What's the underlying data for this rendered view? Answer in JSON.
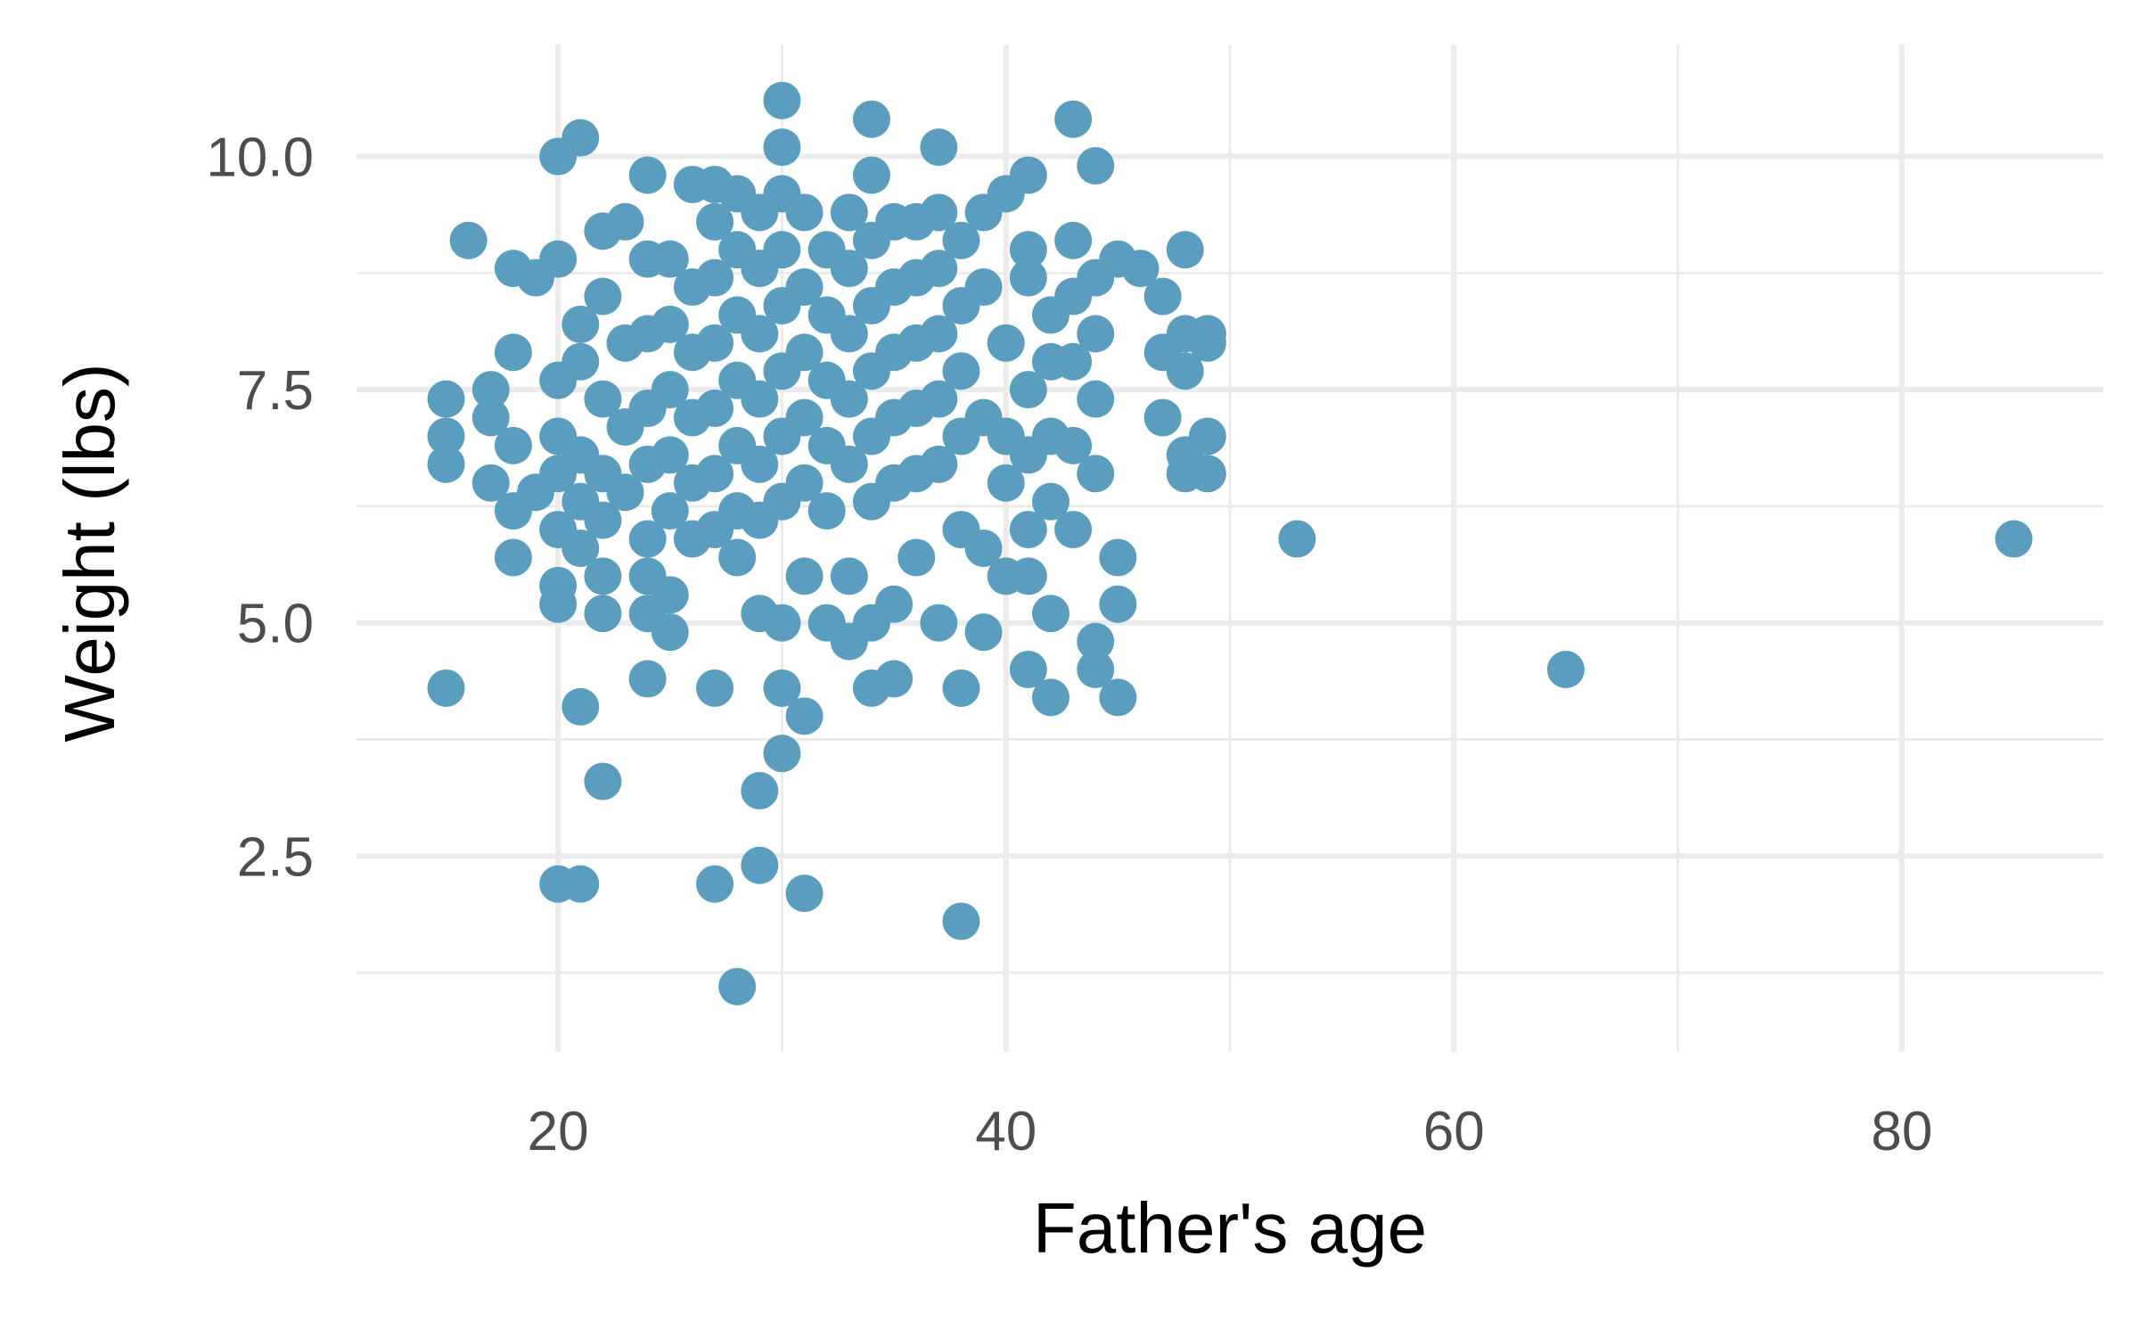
{
  "chart_data": {
    "type": "scatter",
    "xlabel": "Father's age",
    "ylabel": "Weight (lbs)",
    "xlim": [
      11,
      89
    ],
    "ylim": [
      0.4,
      11.2
    ],
    "x_ticks": [
      20,
      40,
      60,
      80
    ],
    "x_tick_labels": [
      "20",
      "40",
      "60",
      "80"
    ],
    "x_minor_ticks": [
      30,
      50,
      70
    ],
    "y_ticks": [
      2.5,
      5.0,
      7.5,
      10.0
    ],
    "y_tick_labels": [
      "2.5",
      "5.0",
      "7.5",
      "10.0"
    ],
    "y_minor_ticks": [
      1.25,
      3.75,
      6.25,
      8.75
    ],
    "grid": true,
    "legend": "none",
    "point_color": "#5a9dbf",
    "series": [
      {
        "x": [
          15,
          15,
          15,
          15,
          16,
          17,
          17,
          17,
          18,
          18,
          18,
          18,
          18,
          19,
          19,
          20,
          20,
          20,
          20,
          20,
          20,
          20,
          20,
          20,
          21,
          21,
          21,
          21,
          21,
          21,
          21,
          21,
          22,
          22,
          22,
          22,
          22,
          22,
          22,
          22,
          23,
          23,
          23,
          23,
          24,
          24,
          24,
          24,
          24,
          24,
          24,
          24,
          24,
          25,
          25,
          25,
          25,
          25,
          25,
          25,
          26,
          26,
          26,
          26,
          26,
          26,
          27,
          27,
          27,
          27,
          27,
          27,
          27,
          27,
          27,
          28,
          28,
          28,
          28,
          28,
          28,
          28,
          28,
          29,
          29,
          29,
          29,
          29,
          29,
          29,
          29,
          29,
          30,
          30,
          30,
          30,
          30,
          30,
          30,
          30,
          30,
          30,
          30,
          31,
          31,
          31,
          31,
          31,
          31,
          31,
          31,
          32,
          32,
          32,
          32,
          32,
          32,
          33,
          33,
          33,
          33,
          33,
          33,
          33,
          34,
          34,
          34,
          34,
          34,
          34,
          34,
          34,
          34,
          35,
          35,
          35,
          35,
          35,
          35,
          35,
          36,
          36,
          36,
          36,
          36,
          36,
          37,
          37,
          37,
          37,
          37,
          37,
          37,
          38,
          38,
          38,
          38,
          38,
          38,
          38,
          39,
          39,
          39,
          39,
          39,
          40,
          40,
          40,
          40,
          40,
          41,
          41,
          41,
          41,
          41,
          41,
          41,
          41,
          42,
          42,
          42,
          42,
          42,
          42,
          43,
          43,
          43,
          43,
          43,
          43,
          44,
          44,
          44,
          44,
          44,
          44,
          44,
          45,
          45,
          45,
          45,
          46,
          47,
          47,
          47,
          48,
          48,
          48,
          48,
          48,
          49,
          49,
          49,
          49,
          53,
          65,
          85
        ],
        "y": [
          7.4,
          7.0,
          6.7,
          4.3,
          9.1,
          7.5,
          7.2,
          6.5,
          8.8,
          7.9,
          6.9,
          6.2,
          5.7,
          8.7,
          6.4,
          10.0,
          8.9,
          7.6,
          7.0,
          6.6,
          6.0,
          5.4,
          5.2,
          2.2,
          10.2,
          8.2,
          7.8,
          6.8,
          6.3,
          5.8,
          4.1,
          2.2,
          9.2,
          8.5,
          7.4,
          6.6,
          6.1,
          5.5,
          5.1,
          3.3,
          9.3,
          8.0,
          7.1,
          6.4,
          9.8,
          8.9,
          8.1,
          7.3,
          6.7,
          5.9,
          5.5,
          5.1,
          4.4,
          8.9,
          8.2,
          7.5,
          6.8,
          6.2,
          5.3,
          4.9,
          9.7,
          8.6,
          7.9,
          7.2,
          6.5,
          5.9,
          9.7,
          9.3,
          8.7,
          8.0,
          7.3,
          6.6,
          6.0,
          4.3,
          2.2,
          9.6,
          9.0,
          8.3,
          7.6,
          6.9,
          6.2,
          5.7,
          1.1,
          9.4,
          8.8,
          8.1,
          7.4,
          6.7,
          6.1,
          5.1,
          3.2,
          2.4,
          10.6,
          10.1,
          9.6,
          9.0,
          8.4,
          7.7,
          7.0,
          6.3,
          5.0,
          4.3,
          3.6,
          9.4,
          8.6,
          7.9,
          7.2,
          6.5,
          5.5,
          4.0,
          2.1,
          9.0,
          8.3,
          7.6,
          6.9,
          6.2,
          5.0,
          9.4,
          8.8,
          8.1,
          7.4,
          6.7,
          5.5,
          4.8,
          10.4,
          9.8,
          9.1,
          8.4,
          7.7,
          7.0,
          6.3,
          5.0,
          4.3,
          9.3,
          8.6,
          7.9,
          7.2,
          6.5,
          5.2,
          4.4,
          9.3,
          8.7,
          8.0,
          7.3,
          6.6,
          5.7,
          10.1,
          9.4,
          8.8,
          8.1,
          7.4,
          6.7,
          5.0,
          9.1,
          8.4,
          7.7,
          7.0,
          6.0,
          4.3,
          1.8,
          9.4,
          8.6,
          7.2,
          5.8,
          4.9,
          9.6,
          8.0,
          7.0,
          6.5,
          5.5,
          9.8,
          9.0,
          8.7,
          7.5,
          6.8,
          6.0,
          5.5,
          4.5,
          8.3,
          7.8,
          7.0,
          6.3,
          5.1,
          4.2,
          10.4,
          9.1,
          8.5,
          7.8,
          6.9,
          6.0,
          9.9,
          8.7,
          8.1,
          7.4,
          6.6,
          4.8,
          4.5,
          8.9,
          5.7,
          5.2,
          4.2,
          8.8,
          8.5,
          7.9,
          7.2,
          9.0,
          8.1,
          7.7,
          6.8,
          6.6,
          8.1,
          8.0,
          7.0,
          6.6,
          5.9,
          4.5,
          5.9
        ]
      }
    ]
  }
}
